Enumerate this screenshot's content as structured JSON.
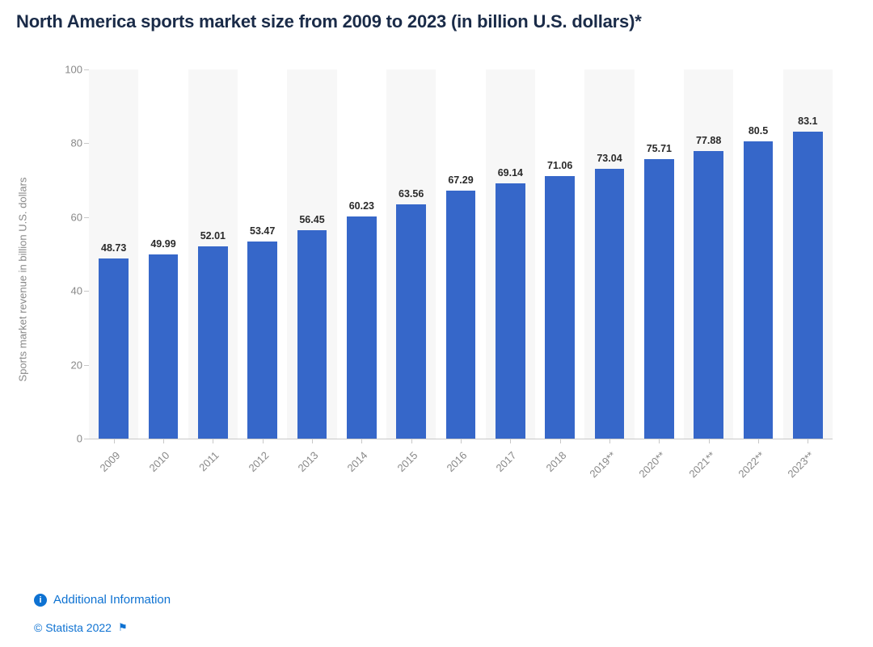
{
  "title": "North America sports market size from 2009 to 2023 (in billion U.S. dollars)*",
  "y_axis_label": "Sports market revenue in billion U.S. dollars",
  "chart": {
    "type": "bar",
    "categories": [
      "2009",
      "2010",
      "2011",
      "2012",
      "2013",
      "2014",
      "2015",
      "2016",
      "2017",
      "2018",
      "2019**",
      "2020**",
      "2021**",
      "2022**",
      "2023**"
    ],
    "values": [
      48.73,
      49.99,
      52.01,
      53.47,
      56.45,
      60.23,
      63.56,
      67.29,
      69.14,
      71.06,
      73.04,
      75.71,
      77.88,
      80.5,
      83.1
    ],
    "value_labels": [
      "48.73",
      "49.99",
      "52.01",
      "53.47",
      "56.45",
      "60.23",
      "63.56",
      "67.29",
      "69.14",
      "71.06",
      "73.04",
      "75.71",
      "77.88",
      "80.5",
      "83.1"
    ],
    "bar_color": "#3667c9",
    "alt_bg_color": "#f7f7f7",
    "background_color": "#ffffff",
    "y_tick_color": "#888888",
    "x_tick_color": "#888888",
    "title_color": "#1a2b48",
    "title_fontsize": 22,
    "y_label_fontsize": 13,
    "tick_fontsize": 13,
    "value_label_fontsize": 12.5,
    "value_label_color": "#2a2a2a",
    "ylim": [
      0,
      100
    ],
    "ytick_step": 20,
    "yticks": [
      0,
      20,
      40,
      60,
      80,
      100
    ],
    "bar_width_ratio": 0.6,
    "grid": false,
    "axis_line_color": "#c8c8c8"
  },
  "footer": {
    "info_label": "Additional Information",
    "credit": "© Statista 2022"
  }
}
